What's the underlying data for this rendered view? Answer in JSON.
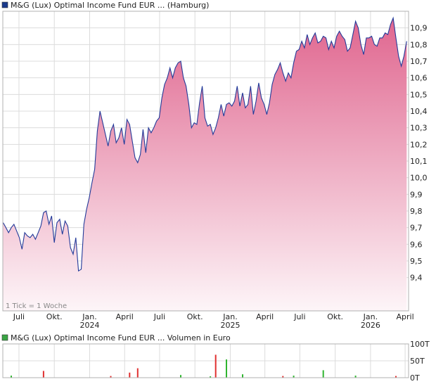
{
  "chart_data": [
    {
      "type": "area",
      "title": "M&G (Lux) Optimal Income Fund EUR ... (Hamburg)",
      "legend_color": "#1a3a8c",
      "line_color": "#233a99",
      "fill_top_color": "#e0668f",
      "fill_bottom_color": "#fdf5f8",
      "ylim": [
        9.2,
        11.0
      ],
      "y_ticks": [
        "9,4",
        "9,5",
        "9,6",
        "9,7",
        "9,8",
        "9,9",
        "10,0",
        "10,1",
        "10,2",
        "10,3",
        "10,4",
        "10,5",
        "10,6",
        "10,7",
        "10,8",
        "10,9"
      ],
      "y_tick_values": [
        9.4,
        9.5,
        9.6,
        9.7,
        9.8,
        9.9,
        10.0,
        10.1,
        10.2,
        10.3,
        10.4,
        10.5,
        10.6,
        10.7,
        10.8,
        10.9
      ],
      "x_ticks": [
        {
          "label": "Juli",
          "year": "",
          "date": "2023-07-01"
        },
        {
          "label": "Okt.",
          "year": "",
          "date": "2023-10-01"
        },
        {
          "label": "Jan.",
          "year": "2024",
          "date": "2024-01-01"
        },
        {
          "label": "April",
          "year": "",
          "date": "2024-04-01"
        },
        {
          "label": "Juli",
          "year": "",
          "date": "2024-07-01"
        },
        {
          "label": "Okt.",
          "year": "",
          "date": "2024-10-01"
        },
        {
          "label": "Jan.",
          "year": "2025",
          "date": "2025-01-01"
        },
        {
          "label": "April",
          "year": "",
          "date": "2025-04-01"
        },
        {
          "label": "Juli",
          "year": "",
          "date": "2025-07-01"
        },
        {
          "label": "Okt.",
          "year": "",
          "date": "2025-10-01"
        },
        {
          "label": "Jan.",
          "year": "2026",
          "date": "2026-01-01"
        },
        {
          "label": "April",
          "year": "",
          "date": "2026-04-01"
        }
      ],
      "xlim": [
        "2023-05-20",
        "2026-04-10"
      ],
      "grid": true,
      "note": "1 Tick = 1 Woche",
      "series": [
        {
          "points": [
            [
              "2023-05-21",
              9.73
            ],
            [
              "2023-05-28",
              9.7
            ],
            [
              "2023-06-04",
              9.67
            ],
            [
              "2023-06-11",
              9.7
            ],
            [
              "2023-06-18",
              9.72
            ],
            [
              "2023-06-25",
              9.68
            ],
            [
              "2023-07-02",
              9.64
            ],
            [
              "2023-07-09",
              9.57
            ],
            [
              "2023-07-16",
              9.67
            ],
            [
              "2023-07-23",
              9.65
            ],
            [
              "2023-07-30",
              9.64
            ],
            [
              "2023-08-06",
              9.66
            ],
            [
              "2023-08-13",
              9.63
            ],
            [
              "2023-08-20",
              9.67
            ],
            [
              "2023-08-27",
              9.71
            ],
            [
              "2023-09-03",
              9.79
            ],
            [
              "2023-09-10",
              9.8
            ],
            [
              "2023-09-17",
              9.72
            ],
            [
              "2023-09-24",
              9.77
            ],
            [
              "2023-10-01",
              9.61
            ],
            [
              "2023-10-08",
              9.73
            ],
            [
              "2023-10-15",
              9.75
            ],
            [
              "2023-10-22",
              9.66
            ],
            [
              "2023-10-29",
              9.74
            ],
            [
              "2023-11-05",
              9.71
            ],
            [
              "2023-11-12",
              9.58
            ],
            [
              "2023-11-19",
              9.54
            ],
            [
              "2023-11-26",
              9.64
            ],
            [
              "2023-12-03",
              9.44
            ],
            [
              "2023-12-10",
              9.45
            ],
            [
              "2023-12-17",
              9.72
            ],
            [
              "2023-12-24",
              9.81
            ],
            [
              "2023-12-31",
              9.88
            ],
            [
              "2024-01-07",
              9.97
            ],
            [
              "2024-01-14",
              10.05
            ],
            [
              "2024-01-21",
              10.28
            ],
            [
              "2024-01-28",
              10.4
            ],
            [
              "2024-02-04",
              10.33
            ],
            [
              "2024-02-11",
              10.26
            ],
            [
              "2024-02-18",
              10.19
            ],
            [
              "2024-02-25",
              10.28
            ],
            [
              "2024-03-03",
              10.32
            ],
            [
              "2024-03-10",
              10.21
            ],
            [
              "2024-03-17",
              10.24
            ],
            [
              "2024-03-24",
              10.3
            ],
            [
              "2024-03-31",
              10.2
            ],
            [
              "2024-04-07",
              10.35
            ],
            [
              "2024-04-14",
              10.32
            ],
            [
              "2024-04-21",
              10.22
            ],
            [
              "2024-04-28",
              10.12
            ],
            [
              "2024-05-05",
              10.09
            ],
            [
              "2024-05-12",
              10.14
            ],
            [
              "2024-05-19",
              10.29
            ],
            [
              "2024-05-26",
              10.15
            ],
            [
              "2024-06-02",
              10.3
            ],
            [
              "2024-06-09",
              10.27
            ],
            [
              "2024-06-16",
              10.3
            ],
            [
              "2024-06-23",
              10.34
            ],
            [
              "2024-06-30",
              10.36
            ],
            [
              "2024-07-07",
              10.48
            ],
            [
              "2024-07-14",
              10.56
            ],
            [
              "2024-07-21",
              10.6
            ],
            [
              "2024-07-28",
              10.66
            ],
            [
              "2024-08-04",
              10.6
            ],
            [
              "2024-08-11",
              10.66
            ],
            [
              "2024-08-18",
              10.69
            ],
            [
              "2024-08-25",
              10.7
            ],
            [
              "2024-09-01",
              10.6
            ],
            [
              "2024-09-08",
              10.55
            ],
            [
              "2024-09-15",
              10.44
            ],
            [
              "2024-09-22",
              10.3
            ],
            [
              "2024-09-29",
              10.33
            ],
            [
              "2024-10-06",
              10.32
            ],
            [
              "2024-10-13",
              10.45
            ],
            [
              "2024-10-20",
              10.55
            ],
            [
              "2024-10-27",
              10.36
            ],
            [
              "2024-11-03",
              10.31
            ],
            [
              "2024-11-10",
              10.32
            ],
            [
              "2024-11-17",
              10.26
            ],
            [
              "2024-11-24",
              10.3
            ],
            [
              "2024-12-01",
              10.36
            ],
            [
              "2024-12-08",
              10.44
            ],
            [
              "2024-12-15",
              10.37
            ],
            [
              "2024-12-22",
              10.44
            ],
            [
              "2024-12-29",
              10.45
            ],
            [
              "2025-01-05",
              10.43
            ],
            [
              "2025-01-12",
              10.46
            ],
            [
              "2025-01-19",
              10.55
            ],
            [
              "2025-01-26",
              10.43
            ],
            [
              "2025-02-02",
              10.51
            ],
            [
              "2025-02-09",
              10.42
            ],
            [
              "2025-02-16",
              10.44
            ],
            [
              "2025-02-23",
              10.55
            ],
            [
              "2025-03-02",
              10.38
            ],
            [
              "2025-03-09",
              10.46
            ],
            [
              "2025-03-16",
              10.57
            ],
            [
              "2025-03-23",
              10.48
            ],
            [
              "2025-03-30",
              10.44
            ],
            [
              "2025-04-06",
              10.38
            ],
            [
              "2025-04-13",
              10.45
            ],
            [
              "2025-04-20",
              10.56
            ],
            [
              "2025-04-27",
              10.62
            ],
            [
              "2025-05-04",
              10.65
            ],
            [
              "2025-05-11",
              10.69
            ],
            [
              "2025-05-18",
              10.63
            ],
            [
              "2025-05-25",
              10.58
            ],
            [
              "2025-06-01",
              10.63
            ],
            [
              "2025-06-08",
              10.6
            ],
            [
              "2025-06-15",
              10.69
            ],
            [
              "2025-06-22",
              10.76
            ],
            [
              "2025-06-29",
              10.77
            ],
            [
              "2025-07-06",
              10.82
            ],
            [
              "2025-07-13",
              10.78
            ],
            [
              "2025-07-20",
              10.86
            ],
            [
              "2025-07-27",
              10.8
            ],
            [
              "2025-08-03",
              10.84
            ],
            [
              "2025-08-10",
              10.87
            ],
            [
              "2025-08-17",
              10.81
            ],
            [
              "2025-08-24",
              10.82
            ],
            [
              "2025-08-31",
              10.85
            ],
            [
              "2025-09-07",
              10.84
            ],
            [
              "2025-09-14",
              10.77
            ],
            [
              "2025-09-21",
              10.82
            ],
            [
              "2025-09-28",
              10.78
            ],
            [
              "2025-10-05",
              10.85
            ],
            [
              "2025-10-12",
              10.88
            ],
            [
              "2025-10-19",
              10.85
            ],
            [
              "2025-10-26",
              10.83
            ],
            [
              "2025-11-02",
              10.76
            ],
            [
              "2025-11-09",
              10.78
            ],
            [
              "2025-11-16",
              10.86
            ],
            [
              "2025-11-23",
              10.94
            ],
            [
              "2025-11-30",
              10.9
            ],
            [
              "2025-12-07",
              10.8
            ],
            [
              "2025-12-14",
              10.74
            ],
            [
              "2025-12-21",
              10.84
            ],
            [
              "2025-12-28",
              10.84
            ],
            [
              "2026-01-04",
              10.85
            ],
            [
              "2026-01-11",
              10.8
            ],
            [
              "2026-01-18",
              10.79
            ],
            [
              "2026-01-25",
              10.84
            ],
            [
              "2026-02-01",
              10.84
            ],
            [
              "2026-02-08",
              10.87
            ],
            [
              "2026-02-15",
              10.86
            ],
            [
              "2026-02-22",
              10.92
            ],
            [
              "2026-03-01",
              10.96
            ],
            [
              "2026-03-08",
              10.84
            ],
            [
              "2026-03-15",
              10.73
            ],
            [
              "2026-03-22",
              10.67
            ],
            [
              "2026-03-29",
              10.73
            ],
            [
              "2026-04-05",
              10.82
            ]
          ]
        }
      ]
    },
    {
      "type": "bar",
      "title": "M&G (Lux) Optimal Income Fund EUR ... Volumen in Euro",
      "legend_color": "#3aa544",
      "ylim": [
        0,
        100
      ],
      "y_ticks": [
        "100T",
        "50T",
        "0T"
      ],
      "y_tick_values": [
        100,
        50,
        0
      ],
      "grid": true,
      "bars": [
        {
          "date": "2023-06-11",
          "value": 6,
          "color": "#2fb52f"
        },
        {
          "date": "2023-09-03",
          "value": 20,
          "color": "#e03030"
        },
        {
          "date": "2024-02-25",
          "value": 5,
          "color": "#e03030"
        },
        {
          "date": "2024-04-14",
          "value": 15,
          "color": "#e03030"
        },
        {
          "date": "2024-05-05",
          "value": 28,
          "color": "#e03030"
        },
        {
          "date": "2024-08-25",
          "value": 8,
          "color": "#2fb52f"
        },
        {
          "date": "2024-11-10",
          "value": 4,
          "color": "#2fb52f"
        },
        {
          "date": "2024-11-24",
          "value": 68,
          "color": "#e03030"
        },
        {
          "date": "2024-12-22",
          "value": 54,
          "color": "#2fb52f"
        },
        {
          "date": "2025-02-02",
          "value": 10,
          "color": "#2fb52f"
        },
        {
          "date": "2025-05-18",
          "value": 5,
          "color": "#e03030"
        },
        {
          "date": "2025-06-15",
          "value": 6,
          "color": "#2fb52f"
        },
        {
          "date": "2025-08-31",
          "value": 22,
          "color": "#2fb52f"
        },
        {
          "date": "2025-11-23",
          "value": 6,
          "color": "#2fb52f"
        },
        {
          "date": "2026-03-08",
          "value": 5,
          "color": "#e03030"
        }
      ]
    }
  ]
}
